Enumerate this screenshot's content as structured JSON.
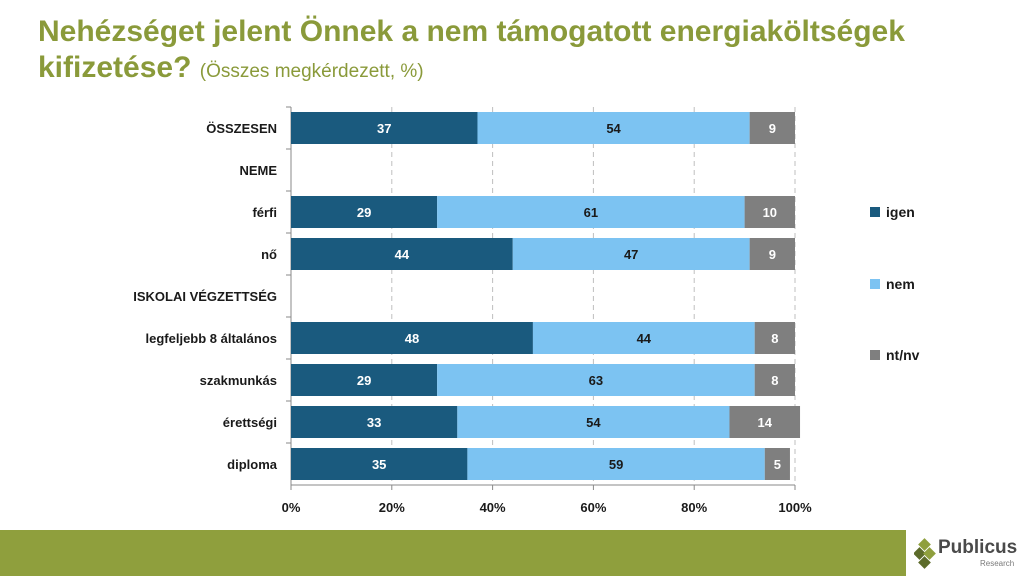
{
  "title": {
    "main": "Nehézséget jelent Önnek a nem támogatott energiaköltségek kifizetése?",
    "sub": "(Összes megkérdezett, %)"
  },
  "chart_data": {
    "type": "bar",
    "orientation": "horizontal",
    "stacked": "percent",
    "categories": [
      "ÖSSZESEN",
      "NEME",
      "férfi",
      "nő",
      "ISKOLAI VÉGZETTSÉG",
      "legfeljebb 8 általános",
      "szakmunkás",
      "érettségi",
      "diploma"
    ],
    "series": [
      {
        "name": "igen",
        "color": "#1a5a7e",
        "values": [
          37,
          null,
          29,
          44,
          null,
          48,
          29,
          33,
          35
        ]
      },
      {
        "name": "nem",
        "color": "#7cc3f2",
        "values": [
          54,
          null,
          61,
          47,
          null,
          44,
          63,
          54,
          59
        ]
      },
      {
        "name": "nt/nv",
        "color": "#7f7f7f",
        "values": [
          9,
          null,
          10,
          9,
          null,
          8,
          8,
          14,
          5
        ]
      }
    ],
    "xlim": [
      0,
      100
    ],
    "xticks": [
      "0%",
      "20%",
      "40%",
      "60%",
      "80%",
      "100%"
    ],
    "grid": true,
    "legend": "right"
  },
  "footer": {
    "brand": "Publicus",
    "brand_sub": "Research"
  }
}
